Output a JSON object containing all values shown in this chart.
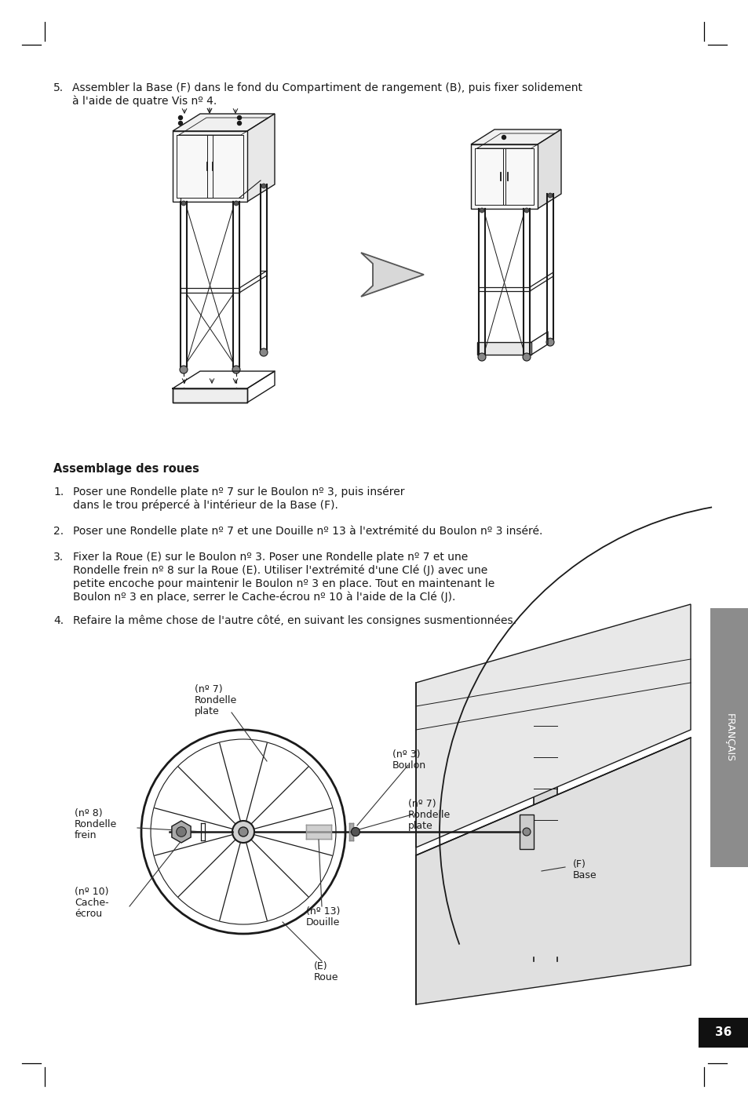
{
  "page_bg": "#ffffff",
  "page_number": "36",
  "sidebar_color": "#8c8c8c",
  "sidebar_text": "FRANÇAIS",
  "step5_text_line1": "Assembler la Base (F) dans le fond du Compartiment de rangement (B), puis fixer solidement",
  "step5_text_line2": "à l'aide de quatre Vis nº 4.",
  "section_title": "Assemblage des roues",
  "step1_line1": "Poser une Rondelle plate nº 7 sur le Boulon nº 3, puis insérer",
  "step1_line2": "dans le trou prépercé à l'intérieur de la Base (F).",
  "step2": "Poser une Rondelle plate nº 7 et une Douille nº 13 à l'extrémité du Boulon nº 3 inséré.",
  "step3_line1": "Fixer la Roue (E) sur le Boulon nº 3. Poser une Rondelle plate nº 7 et une",
  "step3_line2": "Rondelle frein nº 8 sur la Roue (E). Utiliser l'extrémité d'une Clé (J) avec une",
  "step3_line3": "petite encoche pour maintenir le Boulon nº 3 en place. Tout en maintenant le",
  "step3_line4": "Boulon nº 3 en place, serrer le Cache-écrou nº 10 à l'aide de la Clé (J).",
  "step4": "Refaire la même chose de l'autre côté, en suivant les consignes susmentionnées.",
  "text_color": "#1a1a1a",
  "draw_color": "#1a1a1a",
  "label_fontsize": 9.0,
  "body_fontsize": 10.0,
  "title_fontsize": 10.5
}
